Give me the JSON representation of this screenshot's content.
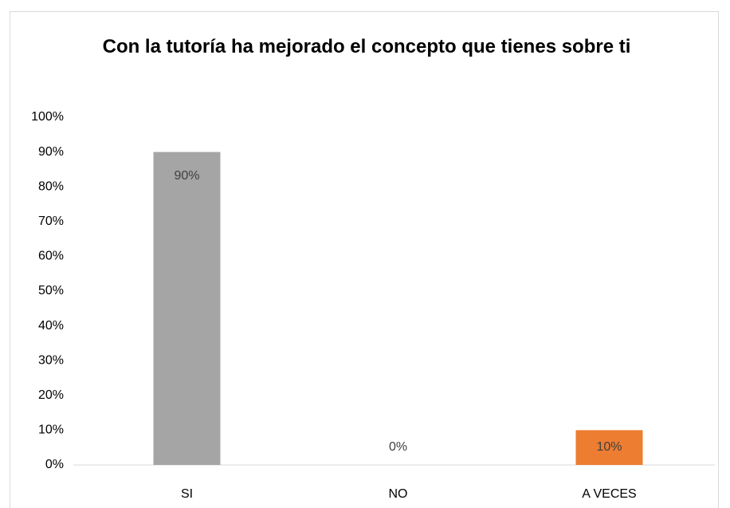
{
  "chart_data": {
    "type": "bar",
    "title": "Con la tutoría ha mejorado el concepto que tienes sobre ti",
    "categories": [
      "SI",
      "NO",
      "A VECES"
    ],
    "values": [
      90,
      0,
      10
    ],
    "value_labels": [
      "90%",
      "0%",
      "10%"
    ],
    "colors": [
      "#a5a5a5",
      "#4472c4",
      "#ed7d31"
    ],
    "ylim": [
      0,
      100
    ],
    "yticks": [
      {
        "value": 0,
        "label": "0%"
      },
      {
        "value": 10,
        "label": "10%"
      },
      {
        "value": 20,
        "label": "20%"
      },
      {
        "value": 30,
        "label": "30%"
      },
      {
        "value": 40,
        "label": "40%"
      },
      {
        "value": 50,
        "label": "50%"
      },
      {
        "value": 60,
        "label": "60%"
      },
      {
        "value": 70,
        "label": "70%"
      },
      {
        "value": 80,
        "label": "80%"
      },
      {
        "value": 90,
        "label": "90%"
      },
      {
        "value": 100,
        "label": "100%"
      }
    ],
    "grid": false
  }
}
